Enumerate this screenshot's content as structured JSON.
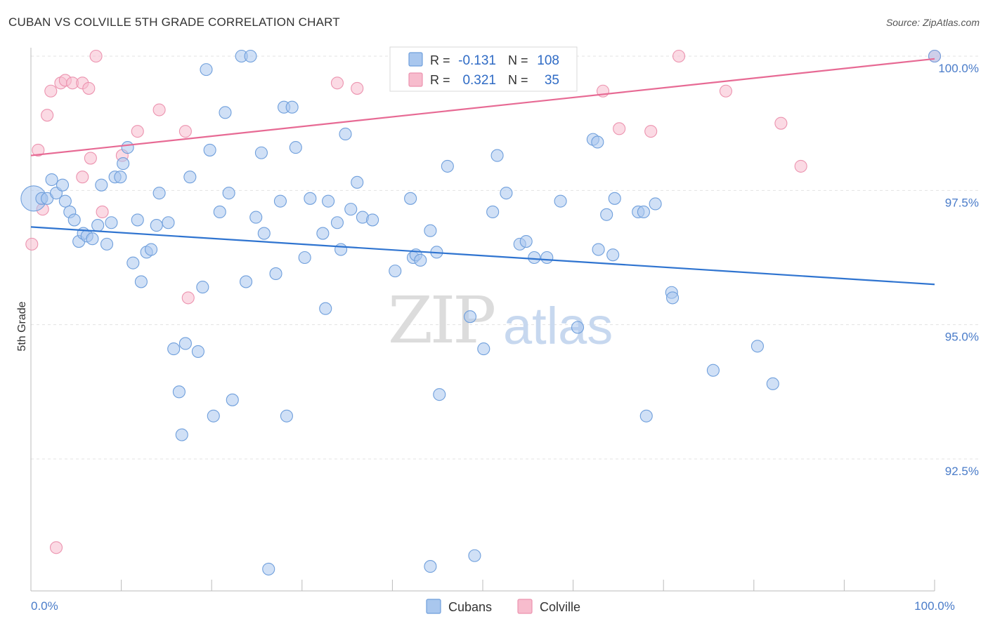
{
  "header": {
    "title": "CUBAN VS COLVILLE 5TH GRADE CORRELATION CHART",
    "source": "Source: ZipAtlas.com"
  },
  "colors": {
    "cubans_fill": "#a9c7ee",
    "cubans_stroke": "#6f9fdc",
    "cubans_line": "#2f74d0",
    "colville_fill": "#f7bccd",
    "colville_stroke": "#ec93af",
    "colville_line": "#e76a94",
    "tick_text": "#4a7cc9",
    "grid": "#e3e3e3"
  },
  "legend_box": {
    "rows": [
      {
        "r_label": "R =",
        "r_value": "-0.131",
        "n_label": "N =",
        "n_value": "108",
        "series": "cubans"
      },
      {
        "r_label": "R =",
        "r_value": "0.321",
        "n_label": "N =",
        "n_value": "35",
        "series": "colville"
      }
    ]
  },
  "watermark": {
    "part1": "ZIP",
    "part2": "atlas"
  },
  "chart_data": {
    "type": "scatter",
    "title": "CUBAN VS COLVILLE 5TH GRADE CORRELATION CHART",
    "xlabel": "",
    "ylabel": "5th Grade",
    "xlim": [
      0,
      100
    ],
    "ylim": [
      90.75,
      100.4
    ],
    "x_tick_labels": [
      {
        "value": 0,
        "label": "0.0%"
      },
      {
        "value": 100,
        "label": "100.0%"
      }
    ],
    "x_minor_ticks": [
      10,
      20,
      30,
      40,
      50,
      60,
      70,
      80,
      90,
      100
    ],
    "y_ticks": [
      {
        "value": 92.5,
        "label": "92.5%"
      },
      {
        "value": 95.0,
        "label": "95.0%"
      },
      {
        "value": 97.5,
        "label": "97.5%"
      },
      {
        "value": 100.0,
        "label": "100.0%"
      }
    ],
    "grid": {
      "horizontal": true,
      "vertical": false,
      "style": "dashed"
    },
    "legend": {
      "position": "bottom-center",
      "entries": [
        "Cubans",
        "Colville"
      ]
    },
    "series": [
      {
        "name": "Cubans",
        "color": "#a9c7ee",
        "r": -0.131,
        "n": 108,
        "trendline": {
          "x": [
            0,
            100
          ],
          "y": [
            96.82,
            95.75
          ]
        },
        "points": [
          {
            "x": 0.3,
            "y": 97.35,
            "big": true
          },
          {
            "x": 1.2,
            "y": 97.35
          },
          {
            "x": 1.8,
            "y": 97.35
          },
          {
            "x": 2.3,
            "y": 97.7
          },
          {
            "x": 2.8,
            "y": 97.45
          },
          {
            "x": 3.5,
            "y": 97.6
          },
          {
            "x": 3.8,
            "y": 97.3
          },
          {
            "x": 4.3,
            "y": 97.1
          },
          {
            "x": 4.8,
            "y": 96.95
          },
          {
            "x": 5.3,
            "y": 96.55
          },
          {
            "x": 5.8,
            "y": 96.7
          },
          {
            "x": 6.2,
            "y": 96.65
          },
          {
            "x": 6.8,
            "y": 96.6
          },
          {
            "x": 7.4,
            "y": 96.85
          },
          {
            "x": 7.8,
            "y": 97.6
          },
          {
            "x": 8.4,
            "y": 96.5
          },
          {
            "x": 8.9,
            "y": 96.9
          },
          {
            "x": 9.3,
            "y": 97.75
          },
          {
            "x": 9.9,
            "y": 97.75
          },
          {
            "x": 10.2,
            "y": 98.0
          },
          {
            "x": 10.7,
            "y": 98.3
          },
          {
            "x": 11.3,
            "y": 96.15
          },
          {
            "x": 11.8,
            "y": 96.95
          },
          {
            "x": 12.2,
            "y": 95.8
          },
          {
            "x": 12.8,
            "y": 96.35
          },
          {
            "x": 13.3,
            "y": 96.4
          },
          {
            "x": 13.9,
            "y": 96.85
          },
          {
            "x": 14.2,
            "y": 97.45
          },
          {
            "x": 15.2,
            "y": 96.9
          },
          {
            "x": 15.8,
            "y": 94.55
          },
          {
            "x": 16.4,
            "y": 93.75
          },
          {
            "x": 16.7,
            "y": 92.95
          },
          {
            "x": 17.1,
            "y": 94.65
          },
          {
            "x": 17.6,
            "y": 97.75
          },
          {
            "x": 18.5,
            "y": 94.5
          },
          {
            "x": 19.0,
            "y": 95.7
          },
          {
            "x": 19.4,
            "y": 99.75
          },
          {
            "x": 19.8,
            "y": 98.25
          },
          {
            "x": 20.2,
            "y": 93.3
          },
          {
            "x": 20.9,
            "y": 97.1
          },
          {
            "x": 21.5,
            "y": 98.95
          },
          {
            "x": 21.9,
            "y": 97.45
          },
          {
            "x": 22.3,
            "y": 93.6
          },
          {
            "x": 23.3,
            "y": 100.0
          },
          {
            "x": 23.8,
            "y": 95.8
          },
          {
            "x": 24.3,
            "y": 100.0
          },
          {
            "x": 24.9,
            "y": 97.0
          },
          {
            "x": 25.5,
            "y": 98.2
          },
          {
            "x": 25.8,
            "y": 96.7
          },
          {
            "x": 26.3,
            "y": 90.45
          },
          {
            "x": 27.1,
            "y": 95.95
          },
          {
            "x": 27.6,
            "y": 97.3
          },
          {
            "x": 28.0,
            "y": 99.05
          },
          {
            "x": 28.3,
            "y": 93.3
          },
          {
            "x": 28.9,
            "y": 99.05
          },
          {
            "x": 29.3,
            "y": 98.3
          },
          {
            "x": 30.3,
            "y": 96.25
          },
          {
            "x": 30.9,
            "y": 97.35
          },
          {
            "x": 32.3,
            "y": 96.7
          },
          {
            "x": 32.6,
            "y": 95.3
          },
          {
            "x": 32.9,
            "y": 97.3
          },
          {
            "x": 33.9,
            "y": 96.9
          },
          {
            "x": 34.3,
            "y": 96.4
          },
          {
            "x": 34.8,
            "y": 98.55
          },
          {
            "x": 35.4,
            "y": 97.15
          },
          {
            "x": 36.1,
            "y": 97.65
          },
          {
            "x": 36.7,
            "y": 97.0
          },
          {
            "x": 37.8,
            "y": 96.95
          },
          {
            "x": 40.3,
            "y": 96.0
          },
          {
            "x": 42.0,
            "y": 97.35
          },
          {
            "x": 42.3,
            "y": 96.25
          },
          {
            "x": 42.6,
            "y": 96.3
          },
          {
            "x": 43.1,
            "y": 96.2
          },
          {
            "x": 44.2,
            "y": 96.75
          },
          {
            "x": 44.2,
            "y": 90.5
          },
          {
            "x": 44.9,
            "y": 96.35
          },
          {
            "x": 45.2,
            "y": 93.7
          },
          {
            "x": 46.1,
            "y": 97.95
          },
          {
            "x": 48.6,
            "y": 95.15
          },
          {
            "x": 49.1,
            "y": 90.7
          },
          {
            "x": 50.1,
            "y": 94.55
          },
          {
            "x": 51.1,
            "y": 97.1
          },
          {
            "x": 51.6,
            "y": 98.15
          },
          {
            "x": 52.6,
            "y": 97.45
          },
          {
            "x": 54.1,
            "y": 96.5
          },
          {
            "x": 54.8,
            "y": 96.55
          },
          {
            "x": 55.7,
            "y": 96.25
          },
          {
            "x": 57.1,
            "y": 96.25
          },
          {
            "x": 58.6,
            "y": 97.3
          },
          {
            "x": 60.5,
            "y": 94.95
          },
          {
            "x": 62.2,
            "y": 98.45
          },
          {
            "x": 62.7,
            "y": 98.4
          },
          {
            "x": 62.8,
            "y": 96.4
          },
          {
            "x": 63.7,
            "y": 97.05
          },
          {
            "x": 64.4,
            "y": 96.3
          },
          {
            "x": 64.6,
            "y": 97.35
          },
          {
            "x": 67.2,
            "y": 97.1
          },
          {
            "x": 67.8,
            "y": 97.1
          },
          {
            "x": 68.1,
            "y": 93.3
          },
          {
            "x": 69.1,
            "y": 97.25
          },
          {
            "x": 70.9,
            "y": 95.6
          },
          {
            "x": 71.0,
            "y": 95.5
          },
          {
            "x": 75.5,
            "y": 94.15
          },
          {
            "x": 80.4,
            "y": 94.6
          },
          {
            "x": 82.1,
            "y": 93.9
          },
          {
            "x": 100.0,
            "y": 100.0
          }
        ]
      },
      {
        "name": "Colville",
        "color": "#f7bccd",
        "r": 0.321,
        "n": 35,
        "trendline": {
          "x": [
            0,
            100
          ],
          "y": [
            98.15,
            99.95
          ]
        },
        "points": [
          {
            "x": 0.1,
            "y": 96.5
          },
          {
            "x": 0.8,
            "y": 98.25
          },
          {
            "x": 1.3,
            "y": 97.15
          },
          {
            "x": 1.8,
            "y": 98.9
          },
          {
            "x": 2.2,
            "y": 99.35
          },
          {
            "x": 3.3,
            "y": 99.5
          },
          {
            "x": 3.8,
            "y": 99.55
          },
          {
            "x": 4.6,
            "y": 99.5
          },
          {
            "x": 5.7,
            "y": 99.5
          },
          {
            "x": 5.7,
            "y": 97.75
          },
          {
            "x": 6.4,
            "y": 99.4
          },
          {
            "x": 6.6,
            "y": 98.1
          },
          {
            "x": 7.2,
            "y": 100.0
          },
          {
            "x": 7.9,
            "y": 97.1
          },
          {
            "x": 10.1,
            "y": 98.15
          },
          {
            "x": 11.8,
            "y": 98.6
          },
          {
            "x": 14.2,
            "y": 99.0
          },
          {
            "x": 17.1,
            "y": 98.6
          },
          {
            "x": 17.4,
            "y": 95.5
          },
          {
            "x": 2.8,
            "y": 90.85
          },
          {
            "x": 33.9,
            "y": 99.5
          },
          {
            "x": 36.1,
            "y": 99.4
          },
          {
            "x": 40.8,
            "y": 100.0
          },
          {
            "x": 44.9,
            "y": 100.0
          },
          {
            "x": 47.2,
            "y": 100.0
          },
          {
            "x": 53.1,
            "y": 100.0
          },
          {
            "x": 63.3,
            "y": 99.35
          },
          {
            "x": 65.1,
            "y": 98.65
          },
          {
            "x": 68.6,
            "y": 98.6
          },
          {
            "x": 71.7,
            "y": 100.0
          },
          {
            "x": 76.9,
            "y": 99.35
          },
          {
            "x": 83.0,
            "y": 98.75
          },
          {
            "x": 85.2,
            "y": 97.95
          },
          {
            "x": 100.0,
            "y": 100.0
          }
        ]
      }
    ]
  },
  "bottom_legend": {
    "items": [
      {
        "label": "Cubans",
        "series": "cubans"
      },
      {
        "label": "Colville",
        "series": "colville"
      }
    ]
  }
}
